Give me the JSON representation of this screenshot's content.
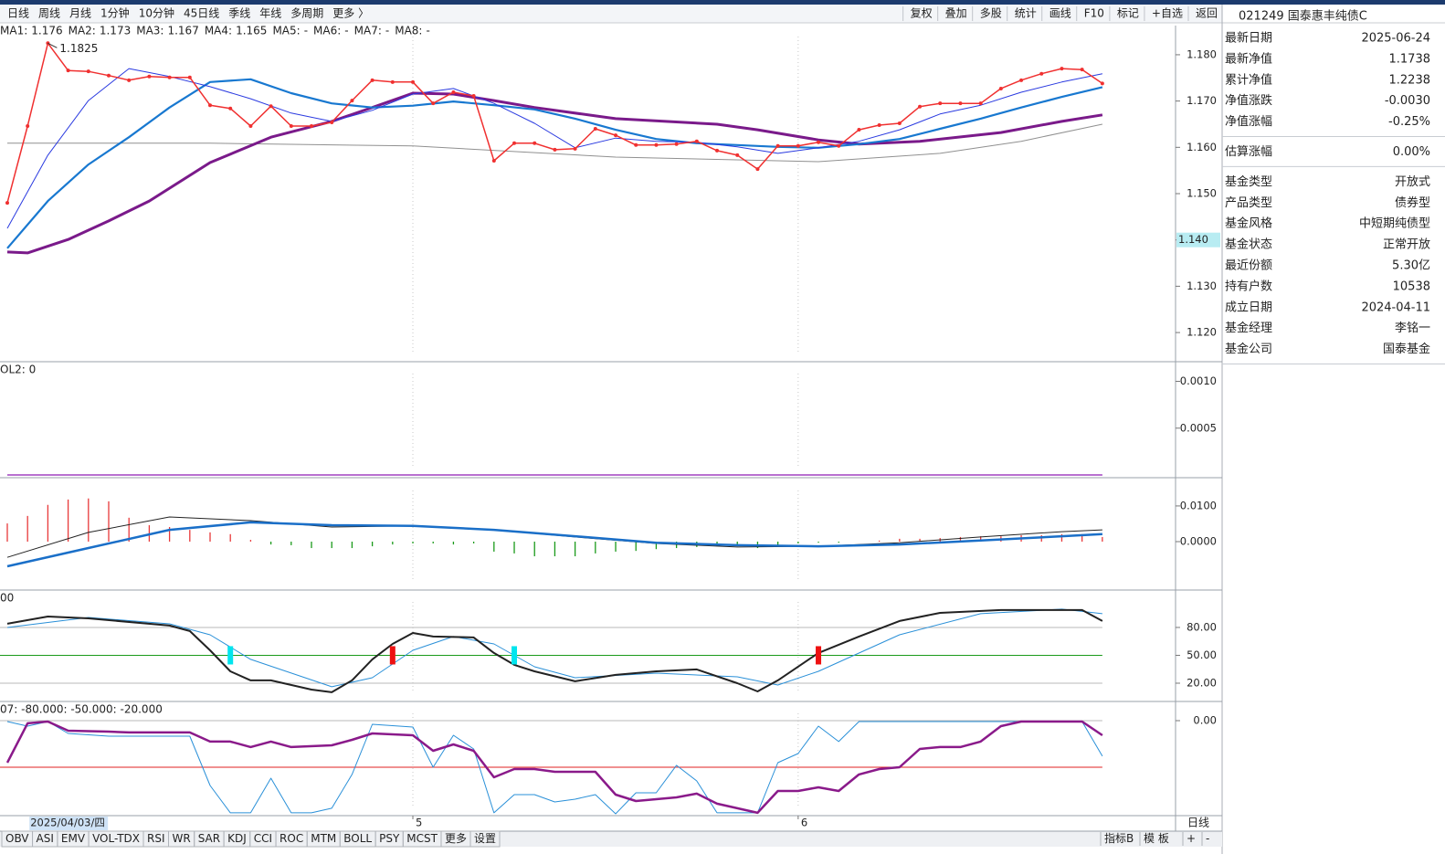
{
  "toolbar": {
    "left": [
      "日线",
      "周线",
      "月线",
      "1分钟",
      "10分钟",
      "45日线",
      "季线",
      "年线",
      "多周期",
      "更多 〉"
    ],
    "active": 0,
    "right": [
      "复权",
      "叠加",
      "多股",
      "统计",
      "画线",
      "F10",
      "标记",
      "+自选",
      "返回"
    ]
  },
  "info_panel": {
    "title": "021249 国泰惠丰纯债C",
    "groups": [
      [
        {
          "label": "最新日期",
          "value": "2025-06-24",
          "color": "#222222"
        },
        {
          "label": "最新净值",
          "value": "1.1738",
          "color": "#1a9a1a"
        },
        {
          "label": "累计净值",
          "value": "1.2238",
          "color": "#222222"
        },
        {
          "label": "净值涨跌",
          "value": "-0.0030",
          "color": "#1a9a1a"
        },
        {
          "label": "净值涨幅",
          "value": "-0.25%",
          "color": "#1a9a1a"
        }
      ],
      [
        {
          "label": "估算涨幅",
          "value": "0.00%",
          "color": "#222222"
        }
      ],
      [
        {
          "label": "基金类型",
          "value": "开放式",
          "color": "#222222"
        },
        {
          "label": "产品类型",
          "value": "债券型",
          "color": "#222222"
        },
        {
          "label": "基金风格",
          "value": "中短期纯债型",
          "color": "#222222"
        },
        {
          "label": "基金状态",
          "value": "正常开放",
          "color": "#222222"
        },
        {
          "label": "最近份额",
          "value": "5.30亿",
          "color": "#222222"
        },
        {
          "label": "持有户数",
          "value": "10538",
          "color": "#222222"
        },
        {
          "label": "成立日期",
          "value": "2024-04-11",
          "color": "#222222"
        },
        {
          "label": "基金经理",
          "value": "李铭一",
          "color": "#222222"
        },
        {
          "label": "基金公司",
          "value": "国泰基金",
          "color": "#222222"
        }
      ]
    ]
  },
  "chart_data": [
    {
      "type": "line",
      "legend": [
        {
          "name": "MA1:",
          "value": "1.176",
          "color": "#2a3ae0"
        },
        {
          "name": "MA2:",
          "value": "1.173",
          "color": "#1878d0"
        },
        {
          "name": "MA3:",
          "value": "1.167",
          "color": "#8a1a8a"
        },
        {
          "name": "MA4:",
          "value": "1.165",
          "color": "#909090"
        },
        {
          "name": "MA5:",
          "value": "-",
          "color": "#1a8a1a"
        },
        {
          "name": "MA6:",
          "value": "-",
          "color": "#30c8e8"
        },
        {
          "name": "MA7:",
          "value": "-",
          "color": "#333333"
        },
        {
          "name": "MA8:",
          "value": "-",
          "color": "#1878d0"
        }
      ],
      "xlim": [
        -0.36,
        57.61
      ],
      "xticks": [
        {
          "value": 1,
          "label": "2025/04/03/四"
        },
        {
          "value": 20,
          "label": "5"
        },
        {
          "value": 39,
          "label": "6"
        }
      ],
      "ylim": [
        1.1139,
        1.1863
      ],
      "yticks": [
        {
          "value": 1.18,
          "label": "1.180"
        },
        {
          "value": 1.17,
          "label": "1.170"
        },
        {
          "value": 1.16,
          "label": "1.160"
        },
        {
          "value": 1.15,
          "label": "1.150"
        },
        {
          "value": 1.14,
          "label": "1.140"
        },
        {
          "value": 1.13,
          "label": "1.130"
        },
        {
          "value": 1.12,
          "label": "1.120"
        }
      ],
      "annotation": {
        "x": 2,
        "value": 1.1825,
        "label": "1.1825"
      },
      "cursor": {
        "value": 1.14,
        "label": "1.140"
      },
      "series": [
        {
          "color": "#909090",
          "width": 1,
          "x": [
            0,
            10,
            20,
            30,
            40,
            46,
            50,
            54
          ],
          "values": [
            1.1609,
            1.1609,
            1.1603,
            1.1579,
            1.1569,
            1.1587,
            1.1613,
            1.165
          ]
        },
        {
          "color": "#7a1a8a",
          "width": 3,
          "x": [
            0,
            1,
            3,
            5,
            7,
            10,
            13,
            16,
            18,
            20,
            22,
            24,
            26,
            30,
            35,
            37,
            40,
            42,
            45,
            49,
            52,
            54
          ],
          "values": [
            1.1374,
            1.1372,
            1.1401,
            1.1441,
            1.1484,
            1.1567,
            1.1622,
            1.1656,
            1.1686,
            1.1717,
            1.1715,
            1.1701,
            1.1686,
            1.1662,
            1.165,
            1.1638,
            1.1616,
            1.1607,
            1.1613,
            1.1632,
            1.1656,
            1.167
          ]
        },
        {
          "color": "#1878d0",
          "width": 2.2,
          "x": [
            0,
            2,
            4,
            6,
            8,
            10,
            12,
            14,
            16,
            18,
            20,
            22,
            24,
            26,
            28,
            30,
            32,
            34,
            36,
            38,
            40,
            42,
            44,
            46,
            48,
            50,
            52,
            54
          ],
          "values": [
            1.1382,
            1.1484,
            1.1563,
            1.1622,
            1.1686,
            1.1741,
            1.1747,
            1.1717,
            1.1695,
            1.1686,
            1.169,
            1.1699,
            1.1691,
            1.1682,
            1.1662,
            1.1638,
            1.1618,
            1.1609,
            1.1605,
            1.1601,
            1.1599,
            1.1607,
            1.1618,
            1.164,
            1.1662,
            1.1686,
            1.1709,
            1.173
          ]
        },
        {
          "color": "#2a3ae0",
          "width": 1,
          "x": [
            0,
            2,
            4,
            6,
            8,
            10,
            12,
            14,
            16,
            18,
            20,
            22,
            24,
            26,
            28,
            30,
            32,
            34,
            36,
            38,
            40,
            42,
            44,
            46,
            48,
            50,
            52,
            54
          ],
          "values": [
            1.1425,
            1.1583,
            1.1701,
            1.177,
            1.1753,
            1.1731,
            1.1705,
            1.1674,
            1.1656,
            1.168,
            1.1715,
            1.1727,
            1.1695,
            1.1652,
            1.1599,
            1.162,
            1.1613,
            1.1611,
            1.1601,
            1.1587,
            1.1599,
            1.1613,
            1.1638,
            1.1672,
            1.1691,
            1.1719,
            1.1741,
            1.1759
          ]
        },
        {
          "color": "#f03030",
          "width": 1.5,
          "markers": true,
          "values": [
            1.148,
            1.1646,
            1.1825,
            1.1766,
            1.1764,
            1.1755,
            1.1745,
            1.1753,
            1.1751,
            1.1751,
            1.1691,
            1.1684,
            1.1646,
            1.1689,
            1.1646,
            1.1646,
            1.1654,
            1.1701,
            1.1745,
            1.1741,
            1.1741,
            1.1695,
            1.1719,
            1.1711,
            1.1571,
            1.1609,
            1.1609,
            1.1595,
            1.1597,
            1.164,
            1.1626,
            1.1605,
            1.1605,
            1.1607,
            1.1613,
            1.1593,
            1.1583,
            1.1553,
            1.1603,
            1.1603,
            1.1611,
            1.1603,
            1.1638,
            1.1648,
            1.1652,
            1.1688,
            1.1695,
            1.1695,
            1.1695,
            1.1727,
            1.1745,
            1.1759,
            1.177,
            1.1768,
            1.1738
          ]
        }
      ]
    },
    {
      "type": "line",
      "header": [
        {
          "text": "OL2: 0",
          "color": "#8a1a8a"
        }
      ],
      "ylim": [
        0,
        0.0012
      ],
      "yticks": [
        {
          "value": 0.001,
          "label": "0.0010"
        },
        {
          "value": 0.0005,
          "label": "0.0005"
        }
      ],
      "series": [
        {
          "color": "#a040c0",
          "width": 1.5,
          "x": [
            0,
            54
          ],
          "values": [
            0,
            0
          ]
        }
      ]
    },
    {
      "type": "combo",
      "ylim": [
        -0.0133,
        0.0174
      ],
      "yticks": [
        {
          "value": 0.01,
          "label": "0.0100"
        },
        {
          "value": 0,
          "label": "0.0000"
        }
      ],
      "bars": {
        "up_color": "#e8393a",
        "down_color": "#1a9a1a",
        "values": [
          0.0051,
          0.0072,
          0.0103,
          0.0118,
          0.0121,
          0.0113,
          0.0067,
          0.0046,
          0.0041,
          0.0033,
          0.0026,
          0.0021,
          0.0005,
          -0.0008,
          -0.001,
          -0.0018,
          -0.0018,
          -0.0018,
          -0.0013,
          -0.0008,
          -0.0005,
          -0.0005,
          -0.0008,
          -0.0005,
          -0.0028,
          -0.0033,
          -0.0041,
          -0.0041,
          -0.0041,
          -0.0033,
          -0.0028,
          -0.0026,
          -0.0021,
          -0.0018,
          -0.0015,
          -0.0013,
          -0.0013,
          -0.0018,
          -0.001,
          -0.0005,
          -0.0003,
          -0.0003,
          0,
          0.0003,
          0.0008,
          0.0008,
          0.001,
          0.0013,
          0.0015,
          0.0015,
          0.0018,
          0.0018,
          0.0021,
          0.0021,
          0.0013
        ]
      },
      "series": [
        {
          "color": "#222222",
          "width": 1,
          "x": [
            0,
            4,
            8,
            12,
            16,
            20,
            24,
            28,
            32,
            36,
            40,
            44,
            48,
            52,
            54
          ],
          "values": [
            -0.0044,
            0.0026,
            0.0069,
            0.0059,
            0.0041,
            0.0044,
            0.0033,
            0.0013,
            -0.0005,
            -0.0015,
            -0.0013,
            -0.0003,
            0.0013,
            0.0028,
            0.0033
          ]
        },
        {
          "color": "#1a6fc8",
          "width": 2.5,
          "x": [
            0,
            4,
            8,
            12,
            16,
            20,
            24,
            28,
            32,
            36,
            40,
            44,
            48,
            52,
            54
          ],
          "values": [
            -0.0069,
            -0.0018,
            0.0033,
            0.0054,
            0.0046,
            0.0044,
            0.0033,
            0.0015,
            -0.0003,
            -0.001,
            -0.0013,
            -0.0008,
            0.0003,
            0.0015,
            0.0021
          ]
        }
      ]
    },
    {
      "type": "line",
      "header": [
        {
          "text": "00",
          "color": "#1a9a1a"
        }
      ],
      "ylim": [
        1.3,
        119.3
      ],
      "yticks": [
        {
          "value": 80,
          "label": "80.00"
        },
        {
          "value": 50,
          "label": "50.00"
        },
        {
          "value": 20,
          "label": "20.00"
        }
      ],
      "hlines": [
        {
          "value": 80,
          "color": "#b8b8b8"
        },
        {
          "value": 50,
          "color": "#1a9a1a"
        },
        {
          "value": 20,
          "color": "#b8b8b8"
        }
      ],
      "series": [
        {
          "color": "#2a90d8",
          "width": 1,
          "x": [
            0,
            4,
            8,
            10,
            12,
            16,
            18,
            20,
            22,
            24,
            26,
            28,
            32,
            36,
            38,
            40,
            44,
            48,
            52,
            54
          ],
          "values": [
            80,
            90.8,
            83.9,
            72.1,
            45.6,
            16.1,
            25.9,
            55.4,
            70.2,
            62.3,
            37.7,
            25.9,
            30.8,
            26.9,
            18,
            32.8,
            72.1,
            94.8,
            99.7,
            94.8
          ]
        },
        {
          "color": "#222222",
          "width": 2,
          "x": [
            0,
            2,
            4,
            8,
            9,
            10,
            11,
            12,
            13,
            15,
            16,
            17,
            18,
            19,
            20,
            21,
            23,
            24,
            25,
            26,
            28,
            30,
            32,
            34,
            36,
            37,
            38,
            40,
            42,
            44,
            46,
            49,
            53,
            54
          ],
          "values": [
            84,
            91.8,
            89.8,
            82,
            76.1,
            55.4,
            32.8,
            23,
            23,
            13.1,
            10.2,
            23,
            45.6,
            62.3,
            74.1,
            70.2,
            69.2,
            52.5,
            39.7,
            32.8,
            22,
            28.9,
            32.8,
            34.8,
            20,
            11.1,
            23,
            52.5,
            70.2,
            86.9,
            95.7,
            98.7,
            98.7,
            86.9
          ]
        }
      ],
      "signals": [
        {
          "x": 11,
          "value": 50,
          "color": "#00e5ee"
        },
        {
          "x": 19,
          "value": 50,
          "color": "#ee1111"
        },
        {
          "x": 25,
          "value": 50,
          "color": "#00e5ee"
        },
        {
          "x": 40,
          "value": 50,
          "color": "#ee1111"
        }
      ]
    },
    {
      "type": "line",
      "header": [
        {
          "text": "07",
          "color": "#8a1a8a"
        },
        {
          "text": " : -80.000",
          "color": "#888888"
        },
        {
          "text": " : -50.000",
          "color": "#e02020"
        },
        {
          "text": " : -20.000",
          "color": "#888888"
        }
      ],
      "ylim": [
        -102,
        19.6
      ],
      "yticks": [
        {
          "value": 0,
          "label": "0.00"
        }
      ],
      "hlines": [
        {
          "value": 0,
          "color": "#b8b8b8"
        },
        {
          "value": -50,
          "color": "#e02020"
        }
      ],
      "series": [
        {
          "color": "#2a90d8",
          "width": 1,
          "x": [
            0,
            1,
            2,
            3,
            5,
            9,
            10,
            11,
            12,
            13,
            14,
            15,
            16,
            17,
            18,
            20,
            21,
            22,
            23,
            24,
            25,
            26,
            27,
            28,
            29,
            30,
            31,
            32,
            33,
            34,
            35,
            37,
            38,
            39,
            40,
            41,
            42,
            43,
            48,
            53,
            54
          ],
          "values": [
            -1,
            -5.9,
            -1,
            -13.7,
            -16.7,
            -16.7,
            -69.6,
            -99,
            -99,
            -61.8,
            -99,
            -99,
            -94.1,
            -57.8,
            -3.9,
            -6.9,
            -50,
            -15.7,
            -30.4,
            -99,
            -79.4,
            -79.4,
            -87.3,
            -84.3,
            -79.4,
            -100,
            -77.5,
            -77.5,
            -48,
            -64.7,
            -99,
            -99,
            -45.1,
            -35.3,
            -5.9,
            -22.5,
            -1,
            -1,
            -1,
            -1,
            -38.2
          ]
        },
        {
          "color": "#8a1a8a",
          "width": 2.5,
          "x": [
            0,
            1,
            2,
            3,
            5,
            6,
            9,
            10,
            11,
            12,
            13,
            14,
            16,
            17,
            18,
            20,
            21,
            22,
            23,
            24,
            25,
            26,
            27,
            29,
            30,
            31,
            33,
            34,
            35,
            37,
            38,
            39,
            40,
            41,
            42,
            43,
            44,
            45,
            46,
            47,
            48,
            49,
            50,
            53,
            54
          ],
          "values": [
            -45.1,
            -2.9,
            -1,
            -10.8,
            -11.8,
            -12.7,
            -12.7,
            -22.5,
            -22.5,
            -28.4,
            -22.5,
            -28.4,
            -26.5,
            -20.6,
            -13.7,
            -15.7,
            -32.4,
            -25.5,
            -32.4,
            -60.8,
            -52,
            -52,
            -54.9,
            -54.9,
            -79.4,
            -86.3,
            -82.4,
            -78.4,
            -89.2,
            -99,
            -75.5,
            -75.5,
            -71.6,
            -75.5,
            -57.8,
            -52,
            -50,
            -30.4,
            -28.4,
            -28.4,
            -22.5,
            -5.9,
            -1,
            -1,
            -15.7
          ]
        }
      ]
    }
  ],
  "x_axis": {
    "period": "日线"
  },
  "tabs": {
    "items": [
      "OBV",
      "ASI",
      "EMV",
      "VOL-TDX",
      "RSI",
      "WR",
      "SAR",
      "KDJ",
      "CCI",
      "ROC",
      "MTM",
      "BOLL",
      "PSY",
      "MCST",
      "更多",
      "设置"
    ],
    "highlight": 15,
    "right": [
      "指标B",
      "模 板",
      "+",
      "-"
    ]
  }
}
